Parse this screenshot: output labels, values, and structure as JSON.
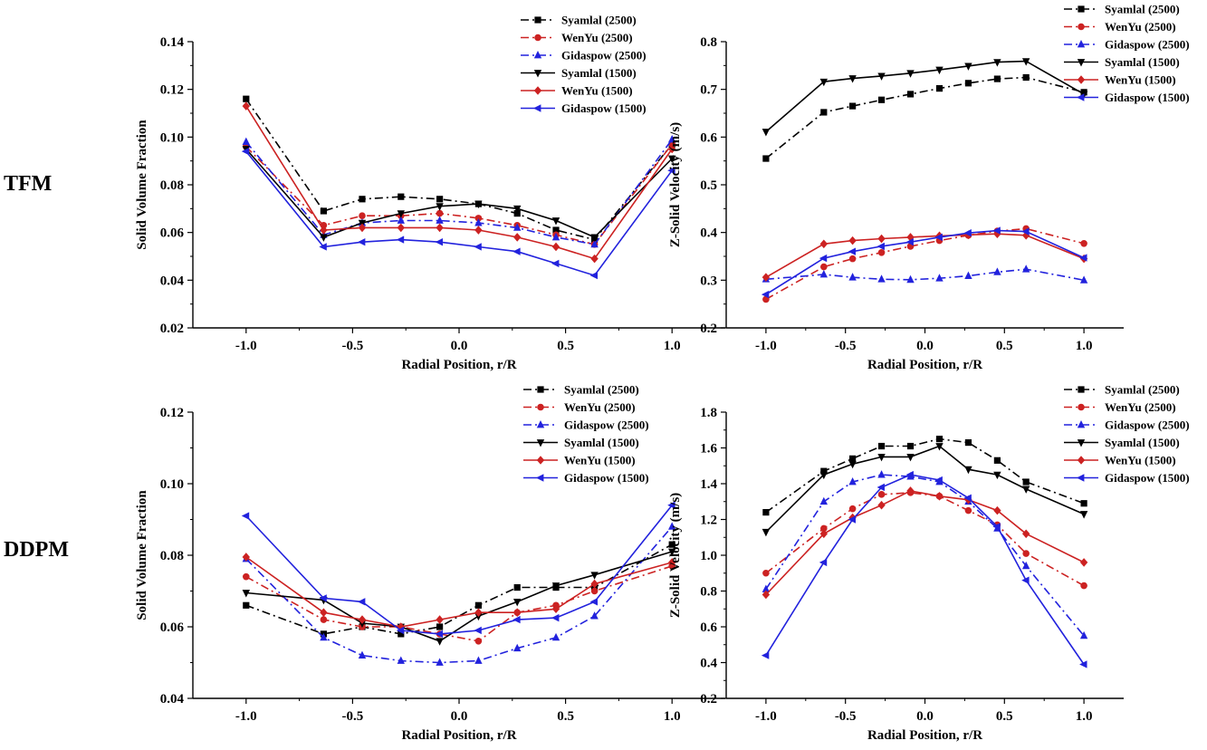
{
  "row_labels": [
    "TFM",
    "DDPM"
  ],
  "legend": [
    "Syamlal (2500)",
    "WenYu (2500)",
    "Gidaspow (2500)",
    "Syamlal (1500)",
    "WenYu (1500)",
    "Gidaspow (1500)"
  ],
  "series_styles": [
    {
      "color": "#000000",
      "dash": "9,4,2,4",
      "marker": "square"
    },
    {
      "color": "#cc2222",
      "dash": "9,4,2,4",
      "marker": "circle"
    },
    {
      "color": "#2222dd",
      "dash": "9,4,2,4",
      "marker": "triangle-up"
    },
    {
      "color": "#000000",
      "dash": "",
      "marker": "triangle-down"
    },
    {
      "color": "#cc2222",
      "dash": "",
      "marker": "diamond"
    },
    {
      "color": "#2222dd",
      "dash": "",
      "marker": "triangle-left"
    }
  ],
  "chart_data": [
    {
      "type": "line",
      "panel": "TFM",
      "xlabel": "Radial Position, r/R",
      "ylabel": "Solid Volume Fraction",
      "xlim": [
        -1.25,
        1.25
      ],
      "ylim": [
        0.02,
        0.14
      ],
      "xticks": [
        "-1.0",
        "-0.5",
        "0.0",
        "0.5",
        "1.0"
      ],
      "yticks": [
        "0.02",
        "0.04",
        "0.06",
        "0.08",
        "0.10",
        "0.12",
        "0.14"
      ],
      "x": [
        -1.0,
        -0.636,
        -0.455,
        -0.273,
        -0.091,
        0.091,
        0.273,
        0.455,
        0.636,
        1.0
      ],
      "series": [
        {
          "name": "Syamlal (2500)",
          "values": [
            0.116,
            0.069,
            0.074,
            0.075,
            0.074,
            0.072,
            0.068,
            0.061,
            0.057,
            0.097
          ]
        },
        {
          "name": "WenYu (2500)",
          "values": [
            0.096,
            0.063,
            0.067,
            0.067,
            0.068,
            0.066,
            0.063,
            0.059,
            0.055,
            0.097
          ]
        },
        {
          "name": "Gidaspow (2500)",
          "values": [
            0.098,
            0.059,
            0.064,
            0.065,
            0.065,
            0.064,
            0.062,
            0.058,
            0.055,
            0.099
          ]
        },
        {
          "name": "Syamlal (1500)",
          "values": [
            0.095,
            0.058,
            0.064,
            0.068,
            0.071,
            0.072,
            0.07,
            0.065,
            0.058,
            0.091
          ]
        },
        {
          "name": "WenYu (1500)",
          "values": [
            0.113,
            0.061,
            0.062,
            0.062,
            0.062,
            0.061,
            0.058,
            0.054,
            0.049,
            0.095
          ]
        },
        {
          "name": "Gidaspow (1500)",
          "values": [
            0.094,
            0.054,
            0.056,
            0.057,
            0.056,
            0.054,
            0.052,
            0.047,
            0.042,
            0.086
          ]
        }
      ]
    },
    {
      "type": "line",
      "panel": "TFM",
      "xlabel": "Radial Position, r/R",
      "ylabel": "Z-Solid Velocity (m/s)",
      "xlim": [
        -1.25,
        1.25
      ],
      "ylim": [
        0.2,
        0.8
      ],
      "xticks": [
        "-1.0",
        "-0.5",
        "0.0",
        "0.5",
        "1.0"
      ],
      "yticks": [
        "0.2",
        "0.3",
        "0.4",
        "0.5",
        "0.6",
        "0.7",
        "0.8"
      ],
      "x": [
        -1.0,
        -0.636,
        -0.455,
        -0.273,
        -0.091,
        0.091,
        0.273,
        0.455,
        0.636,
        1.0
      ],
      "series": [
        {
          "name": "Syamlal (2500)",
          "values": [
            0.555,
            0.652,
            0.665,
            0.678,
            0.69,
            0.702,
            0.713,
            0.722,
            0.725,
            0.694
          ]
        },
        {
          "name": "WenYu (2500)",
          "values": [
            0.26,
            0.328,
            0.345,
            0.358,
            0.371,
            0.383,
            0.394,
            0.403,
            0.408,
            0.377
          ]
        },
        {
          "name": "Gidaspow (2500)",
          "values": [
            0.302,
            0.312,
            0.306,
            0.302,
            0.301,
            0.304,
            0.309,
            0.317,
            0.323,
            0.3
          ]
        },
        {
          "name": "Syamlal (1500)",
          "values": [
            0.611,
            0.716,
            0.723,
            0.728,
            0.734,
            0.741,
            0.749,
            0.757,
            0.759,
            0.69
          ]
        },
        {
          "name": "WenYu (1500)",
          "values": [
            0.306,
            0.376,
            0.383,
            0.387,
            0.39,
            0.393,
            0.395,
            0.397,
            0.394,
            0.345
          ]
        },
        {
          "name": "Gidaspow (1500)",
          "values": [
            0.27,
            0.346,
            0.36,
            0.371,
            0.38,
            0.39,
            0.399,
            0.404,
            0.402,
            0.347
          ]
        }
      ]
    },
    {
      "type": "line",
      "panel": "DDPM",
      "xlabel": "Radial Position, r/R",
      "ylabel": "Solid Volume Fraction",
      "xlim": [
        -1.25,
        1.25
      ],
      "ylim": [
        0.04,
        0.12
      ],
      "xticks": [
        "-1.0",
        "-0.5",
        "0.0",
        "0.5",
        "1.0"
      ],
      "yticks": [
        "0.04",
        "0.06",
        "0.08",
        "0.10",
        "0.12"
      ],
      "x": [
        -1.0,
        -0.636,
        -0.455,
        -0.273,
        -0.091,
        0.091,
        0.273,
        0.455,
        0.636,
        1.0
      ],
      "series": [
        {
          "name": "Syamlal (2500)",
          "values": [
            0.066,
            0.058,
            0.06,
            0.058,
            0.06,
            0.066,
            0.071,
            0.071,
            0.071,
            0.083
          ]
        },
        {
          "name": "WenYu (2500)",
          "values": [
            0.074,
            0.062,
            0.06,
            0.06,
            0.058,
            0.056,
            0.064,
            0.066,
            0.07,
            0.077
          ]
        },
        {
          "name": "Gidaspow (2500)",
          "values": [
            0.079,
            0.057,
            0.052,
            0.0505,
            0.05,
            0.0505,
            0.054,
            0.057,
            0.063,
            0.088
          ]
        },
        {
          "name": "Syamlal (1500)",
          "values": [
            0.0695,
            0.0675,
            0.061,
            0.06,
            0.056,
            0.063,
            0.067,
            0.0715,
            0.0745,
            0.081
          ]
        },
        {
          "name": "WenYu (1500)",
          "values": [
            0.0795,
            0.064,
            0.062,
            0.06,
            0.062,
            0.064,
            0.064,
            0.065,
            0.072,
            0.078
          ]
        },
        {
          "name": "Gidaspow (1500)",
          "values": [
            0.091,
            0.068,
            0.067,
            0.059,
            0.058,
            0.059,
            0.062,
            0.0625,
            0.067,
            0.094
          ]
        }
      ]
    },
    {
      "type": "line",
      "panel": "DDPM",
      "xlabel": "Radial Position, r/R",
      "ylabel": "Z-Solid Velocity (m/s)",
      "xlim": [
        -1.25,
        1.25
      ],
      "ylim": [
        0.2,
        1.8
      ],
      "xticks": [
        "-1.0",
        "-0.5",
        "0.0",
        "0.5",
        "1.0"
      ],
      "yticks": [
        "0.2",
        "0.4",
        "0.6",
        "0.8",
        "1.0",
        "1.2",
        "1.4",
        "1.6",
        "1.8"
      ],
      "x": [
        -1.0,
        -0.636,
        -0.455,
        -0.273,
        -0.091,
        0.091,
        0.273,
        0.455,
        0.636,
        1.0
      ],
      "series": [
        {
          "name": "Syamlal (2500)",
          "values": [
            1.24,
            1.47,
            1.54,
            1.61,
            1.61,
            1.65,
            1.63,
            1.53,
            1.41,
            1.29
          ]
        },
        {
          "name": "WenYu (2500)",
          "values": [
            0.9,
            1.15,
            1.26,
            1.34,
            1.35,
            1.33,
            1.25,
            1.17,
            1.01,
            0.83
          ]
        },
        {
          "name": "Gidaspow (2500)",
          "values": [
            0.81,
            1.3,
            1.41,
            1.45,
            1.44,
            1.41,
            1.3,
            1.15,
            0.94,
            0.55
          ]
        },
        {
          "name": "Syamlal (1500)",
          "values": [
            1.13,
            1.45,
            1.51,
            1.55,
            1.55,
            1.61,
            1.48,
            1.45,
            1.37,
            1.23
          ]
        },
        {
          "name": "WenYu (1500)",
          "values": [
            0.78,
            1.12,
            1.21,
            1.28,
            1.36,
            1.33,
            1.31,
            1.25,
            1.12,
            0.96
          ]
        },
        {
          "name": "Gidaspow (1500)",
          "values": [
            0.44,
            0.96,
            1.2,
            1.38,
            1.45,
            1.42,
            1.32,
            1.16,
            0.86,
            0.39
          ]
        }
      ]
    }
  ]
}
